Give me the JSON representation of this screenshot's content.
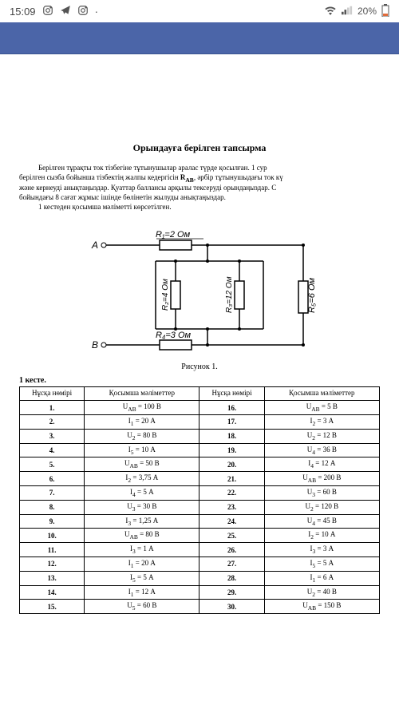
{
  "statusbar": {
    "time": "15:09",
    "battery": "20%",
    "battery_color": "#e06a3a"
  },
  "document": {
    "title": "Орындауға берілген тапсырма",
    "para1": "Берілген тұрақты ток тізбегіне тұтынушылар аралас түрде қосылған. 1 сур",
    "para2_a": "берілген сызба бойынша тізбектің жалпы кедергісін ",
    "para2_b": "R",
    "para2_sub": "AB",
    "para2_c": ", әрбір тұтынушыдағы ток кү",
    "para3": "және кернеуді анықтаңыздар. Қуаттар баллансы арқылы тексеруді орындаңыздар. С",
    "para4": "бойындағы 8 сағат жұмыс ішінде бөлінетін жылуды анықтаңыздар.",
    "para5": "1 кестеден қосымша мәліметті көрсетілген.",
    "circuit_caption": "Рисунок 1.",
    "table_title": "1 кесте."
  },
  "circuit": {
    "A": "A",
    "B": "B",
    "R1": "R₁=2 Ом",
    "R2": "R₂=4 Ом",
    "R3": "R₃=12 Ом",
    "R4": "R₄=3 Ом",
    "R5": "R₅=6 Ом"
  },
  "table": {
    "h1": "Нұсқа нөмірі",
    "h2": "Қосымша мәліметтер",
    "h3": "Нұсқа нөмірі",
    "h4": "Қосымша мәліметтер",
    "rows": [
      {
        "n1": "1.",
        "v1": "U_AB = 100 В",
        "n2": "16.",
        "v2": "U_AB = 5 В"
      },
      {
        "n1": "2.",
        "v1": "I₁ = 20 А",
        "n2": "17.",
        "v2": "I₂ = 3 А"
      },
      {
        "n1": "3.",
        "v1": "U₂ = 80 В",
        "n2": "18.",
        "v2": "U₂ = 12 В"
      },
      {
        "n1": "4.",
        "v1": "I₅ = 10 А",
        "n2": "19.",
        "v2": "U₄ = 36 В"
      },
      {
        "n1": "5.",
        "v1": "U_AB = 50 В",
        "n2": "20.",
        "v2": "I₄ = 12 А"
      },
      {
        "n1": "6.",
        "v1": "I₂ = 3,75 А",
        "n2": "21.",
        "v2": "U_AB = 200 В"
      },
      {
        "n1": "7.",
        "v1": "I₄ = 5 А",
        "n2": "22.",
        "v2": "U₃ = 60 В"
      },
      {
        "n1": "8.",
        "v1": "U₃ = 30 В",
        "n2": "23.",
        "v2": "U₂ = 120 В"
      },
      {
        "n1": "9.",
        "v1": "I₃ = 1,25 А",
        "n2": "24.",
        "v2": "U₄ = 45 В"
      },
      {
        "n1": "10.",
        "v1": "U_AB = 80 В",
        "n2": "25.",
        "v2": "I₂ = 10 А"
      },
      {
        "n1": "11.",
        "v1": "I₃ = 1 А",
        "n2": "26.",
        "v2": "I₃ = 3 А"
      },
      {
        "n1": "12.",
        "v1": "I₁ = 20 А",
        "n2": "27.",
        "v2": "I₅ = 5 А"
      },
      {
        "n1": "13.",
        "v1": "I₅ = 5 А",
        "n2": "28.",
        "v2": "I₁ = 6 А"
      },
      {
        "n1": "14.",
        "v1": "I₁ = 12 А",
        "n2": "29.",
        "v2": "U₂ = 40 В"
      },
      {
        "n1": "15.",
        "v1": "U₅ = 60 В",
        "n2": "30.",
        "v2": "U_AB = 150 В"
      }
    ]
  }
}
